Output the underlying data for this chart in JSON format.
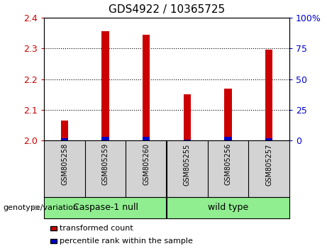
{
  "title": "GDS4922 / 10365725",
  "samples": [
    "GSM805258",
    "GSM805259",
    "GSM805260",
    "GSM805255",
    "GSM805256",
    "GSM805257"
  ],
  "red_values": [
    2.065,
    2.355,
    2.345,
    2.15,
    2.17,
    2.295
  ],
  "blue_values": [
    1,
    2,
    2,
    1,
    2,
    2
  ],
  "y_min": 2.0,
  "y_max": 2.4,
  "y_ticks": [
    2.0,
    2.1,
    2.2,
    2.3,
    2.4
  ],
  "y_right_ticks": [
    0,
    25,
    50,
    75,
    100
  ],
  "y_right_labels": [
    "0",
    "25",
    "50",
    "75",
    "100%"
  ],
  "group_separator": 3,
  "group_labels": [
    "Caspase-1 null",
    "wild type"
  ],
  "left_axis_color": "#cc0000",
  "right_axis_color": "#0000cc",
  "bar_color_red": "#cc0000",
  "bar_color_blue": "#0000cc",
  "plot_bg_color": "#ffffff",
  "sample_bg_color": "#d3d3d3",
  "group_bg_color": "#90ee90",
  "legend_red_label": "transformed count",
  "legend_blue_label": "percentile rank within the sample",
  "genotype_label": "genotype/variation",
  "bar_width": 0.18,
  "blue_bar_pct": [
    2,
    3,
    3,
    1,
    3,
    2
  ]
}
